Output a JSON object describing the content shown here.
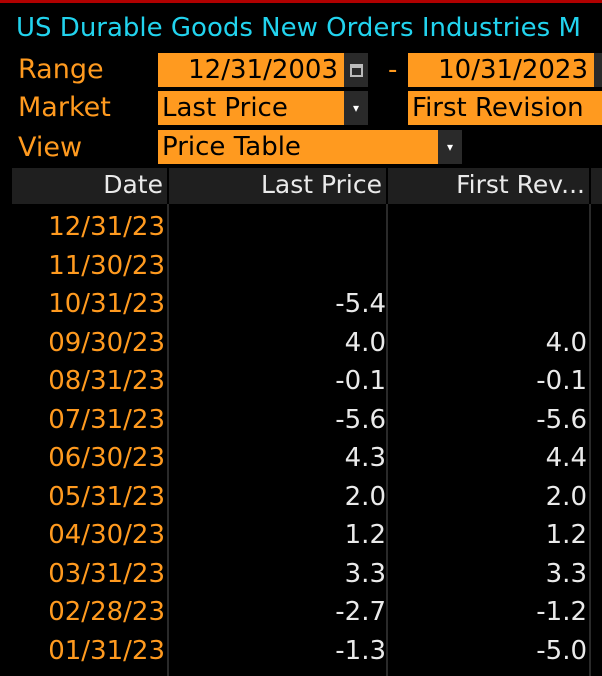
{
  "title": "US Durable Goods New Orders Industries M",
  "controls": {
    "range_label": "Range",
    "range_start": "12/31/2003",
    "range_sep": "-",
    "range_end": "10/31/2023",
    "market_label": "Market",
    "market_value": "Last Price",
    "market_value2": "First Revision",
    "view_label": "View",
    "view_value": "Price Table"
  },
  "table": {
    "headers": [
      "Date",
      "Last Price",
      "First Rev..."
    ],
    "rows": [
      {
        "date": "12/31/23",
        "last": "",
        "first": ""
      },
      {
        "date": "11/30/23",
        "last": "",
        "first": ""
      },
      {
        "date": "10/31/23",
        "last": "-5.4",
        "first": ""
      },
      {
        "date": "09/30/23",
        "last": "4.0",
        "first": "4.0"
      },
      {
        "date": "08/31/23",
        "last": "-0.1",
        "first": "-0.1"
      },
      {
        "date": "07/31/23",
        "last": "-5.6",
        "first": "-5.6"
      },
      {
        "date": "06/30/23",
        "last": "4.3",
        "first": "4.4"
      },
      {
        "date": "05/31/23",
        "last": "2.0",
        "first": "2.0"
      },
      {
        "date": "04/30/23",
        "last": "1.2",
        "first": "1.2"
      },
      {
        "date": "03/31/23",
        "last": "3.3",
        "first": "3.3"
      },
      {
        "date": "02/28/23",
        "last": "-2.7",
        "first": "-1.2"
      },
      {
        "date": "01/31/23",
        "last": "-1.3",
        "first": "-5.0"
      }
    ]
  },
  "colors": {
    "accent": "#ff9a1f",
    "title": "#22d3ee",
    "background": "#000000",
    "header_bg": "#1f1f1f"
  }
}
